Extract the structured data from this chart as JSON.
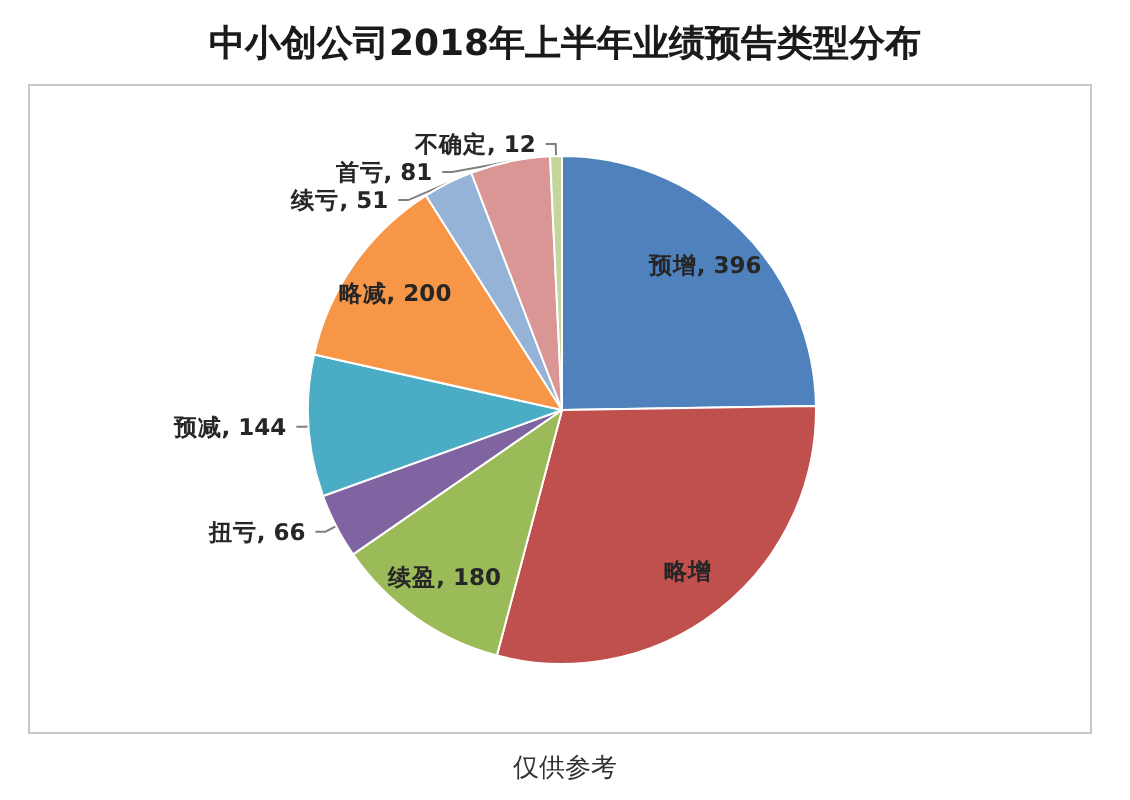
{
  "chart_data": {
    "type": "pie",
    "title": "中小创公司2018年上半年业绩预告类型分布",
    "categories": [
      "预增",
      "略增",
      "续盈",
      "扭亏",
      "预减",
      "略减",
      "续亏",
      "首亏",
      "不确定"
    ],
    "values": [
      396,
      470,
      180,
      66,
      144,
      200,
      51,
      81,
      12
    ],
    "value_labels": [
      "396",
      null,
      "180",
      "66",
      "144",
      "200",
      "51",
      "81",
      "12"
    ],
    "colors": [
      "#4f81bd",
      "#c0504d",
      "#9bbb59",
      "#8064a2",
      "#4bacc6",
      "#f79646",
      "#95b3d7",
      "#d99694",
      "#c3d69b"
    ],
    "annotations": [
      "仅供参考"
    ]
  }
}
